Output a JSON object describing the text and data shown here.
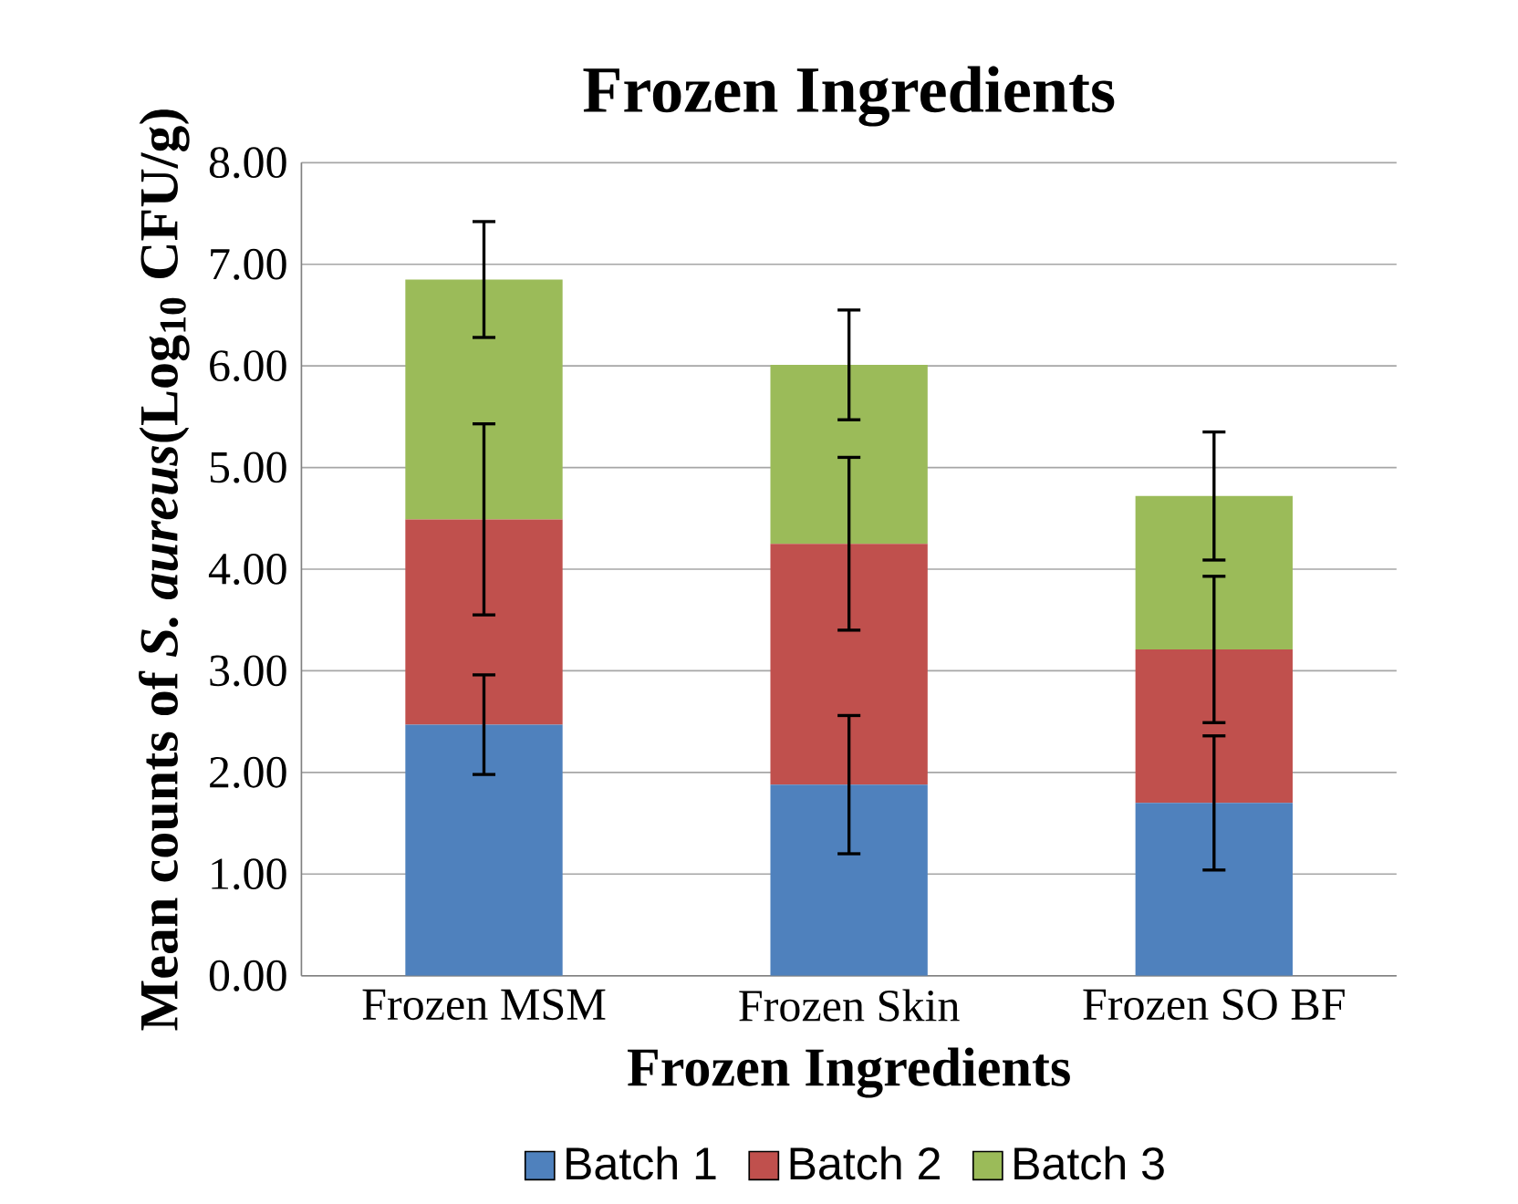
{
  "chart_data": {
    "type": "bar",
    "stacked": true,
    "title": "Frozen Ingredients",
    "xlabel": "Frozen Ingredients",
    "ylabel": "Mean counts of *S. aureus*(Log$_{10}$ CFU/g)",
    "categories": [
      "Frozen MSM",
      "Frozen Skin",
      "Frozen SO BF"
    ],
    "series": [
      {
        "name": "Batch 1",
        "color": "#4f81bd",
        "values": [
          2.47,
          1.88,
          1.7
        ],
        "errors": [
          0.49,
          0.68,
          0.66
        ]
      },
      {
        "name": "Batch 2",
        "color": "#c0504d",
        "values": [
          2.02,
          2.37,
          1.51
        ],
        "errors": [
          0.94,
          0.85,
          0.72
        ]
      },
      {
        "name": "Batch 3",
        "color": "#9bbb59",
        "values": [
          2.36,
          1.76,
          1.51
        ],
        "errors": [
          0.57,
          0.54,
          0.63
        ]
      }
    ],
    "ylim": [
      0,
      8
    ],
    "yticks": [
      {
        "value": 0,
        "label": "0.00"
      },
      {
        "value": 1,
        "label": "1.00"
      },
      {
        "value": 2,
        "label": "2.00"
      },
      {
        "value": 3,
        "label": "3.00"
      },
      {
        "value": 4,
        "label": "4.00"
      },
      {
        "value": 5,
        "label": "5.00"
      },
      {
        "value": 6,
        "label": "6.00"
      },
      {
        "value": 7,
        "label": "7.00"
      },
      {
        "value": 8,
        "label": "8.00"
      }
    ],
    "grid": "y",
    "legend": "bottom"
  }
}
